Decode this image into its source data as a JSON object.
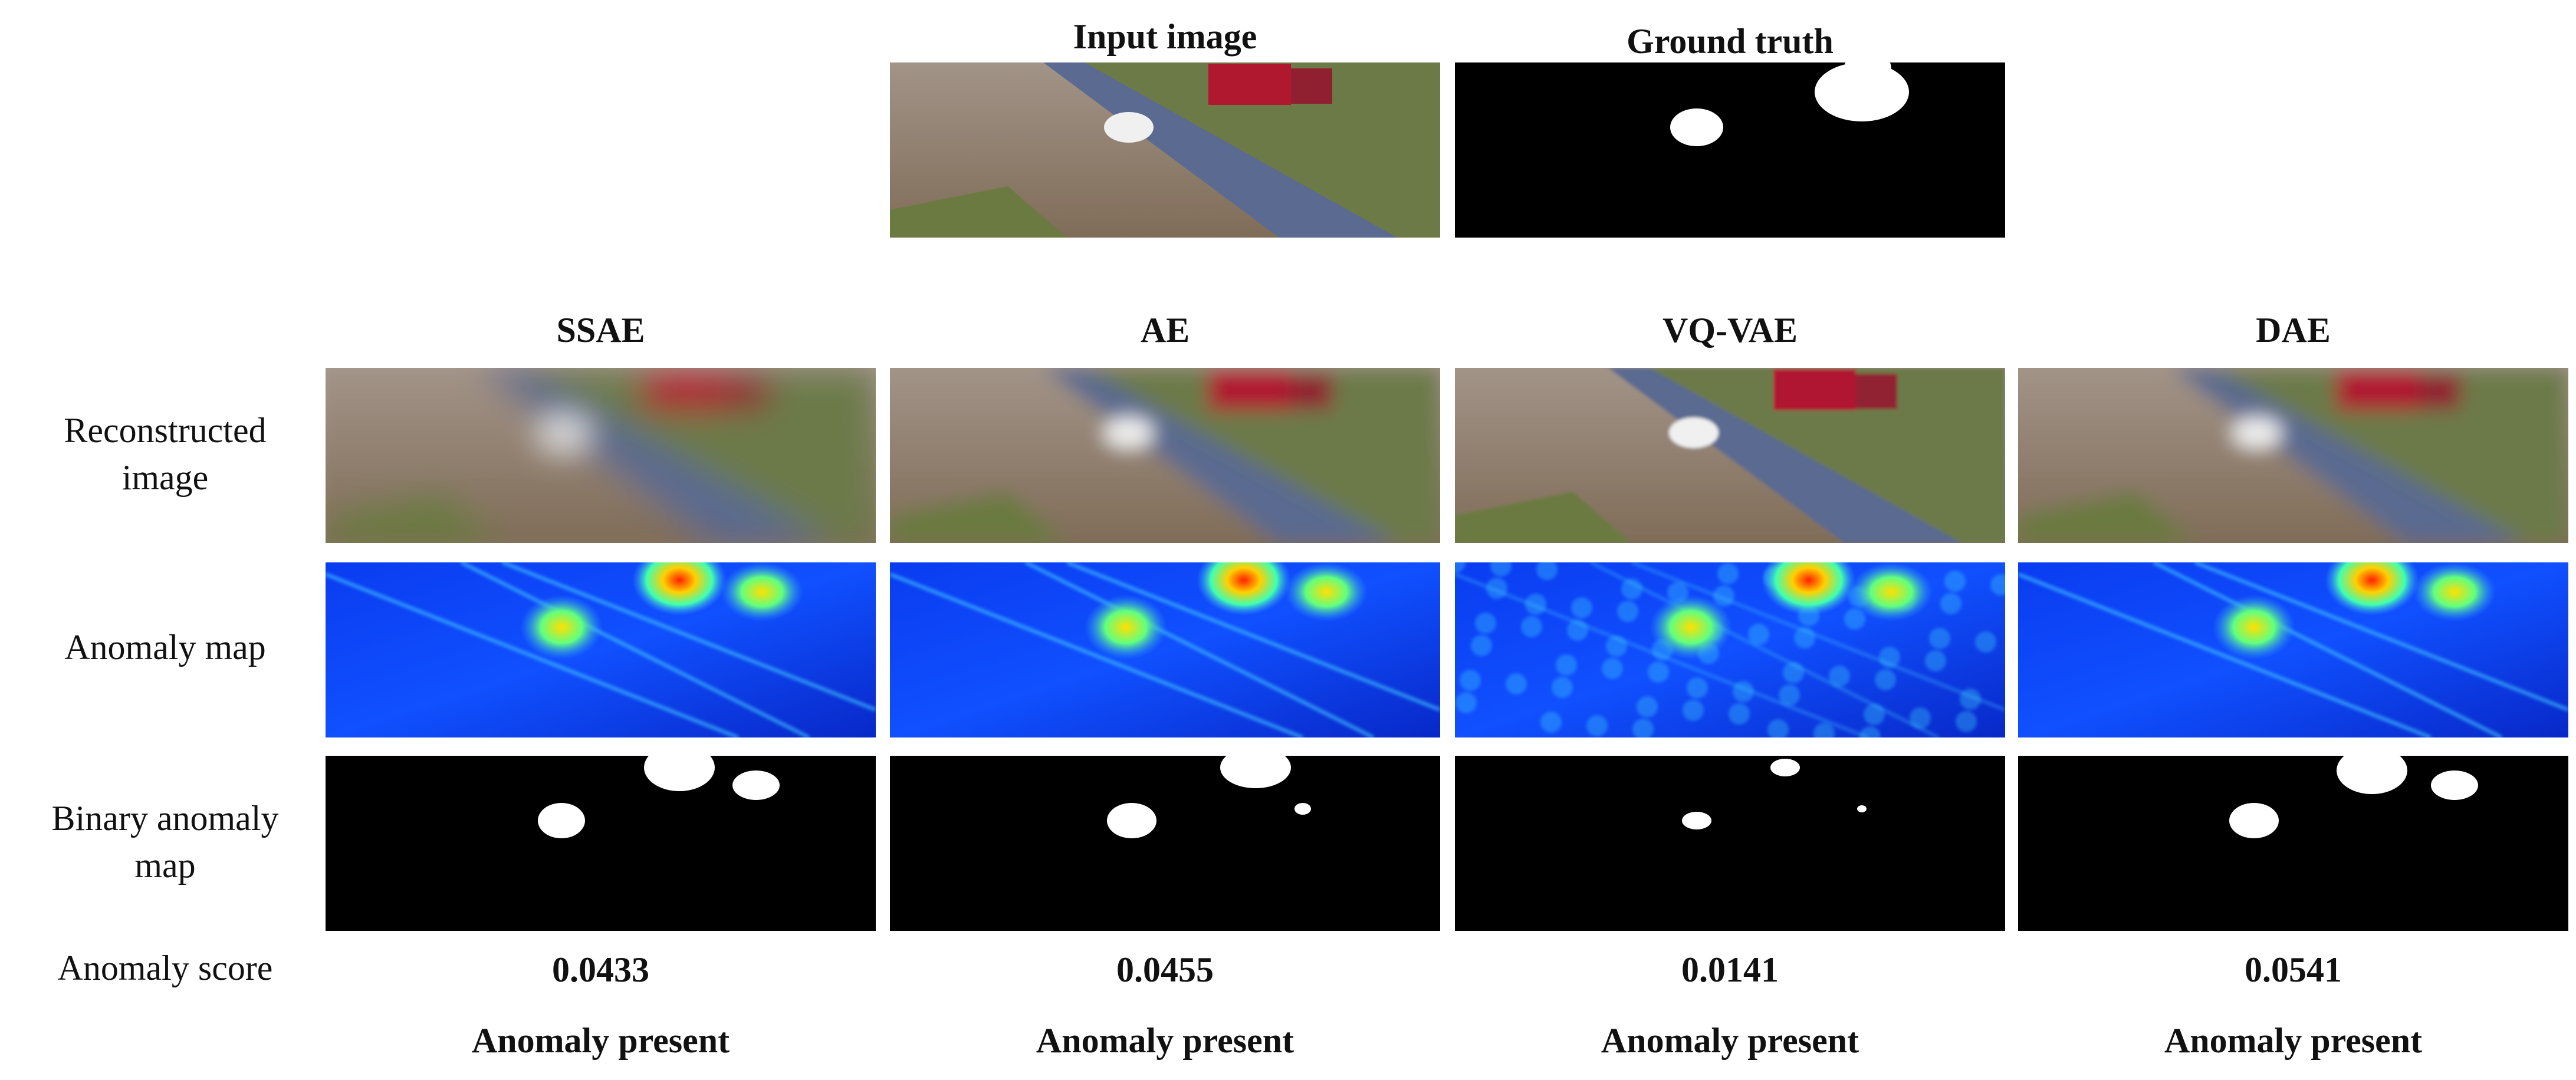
{
  "header": {
    "input_title": "Input image",
    "ground_truth_title": "Ground truth"
  },
  "row_labels": [
    "Reconstructed image",
    "Anomaly map",
    "Binary anomaly map",
    "Anomaly score"
  ],
  "columns": [
    {
      "method": "SSAE",
      "anomaly_score": 0.0433,
      "result": "Anomaly present"
    },
    {
      "method": "AE",
      "anomaly_score": 0.0455,
      "result": "Anomaly present"
    },
    {
      "method": "VQ-VAE",
      "anomaly_score": 0.0141,
      "result": "Anomaly present"
    },
    {
      "method": "DAE",
      "anomaly_score": 0.0541,
      "result": "Anomaly present"
    }
  ]
}
